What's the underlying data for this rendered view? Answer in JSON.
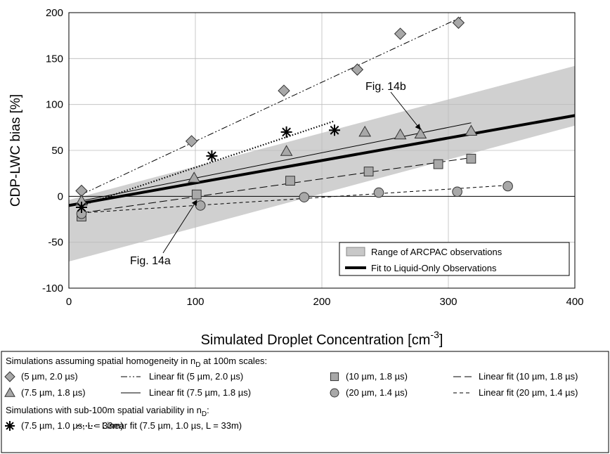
{
  "chart_data": {
    "type": "scatter",
    "xlabel": {
      "text": "Simulated Droplet Concentration [cm",
      "sup": "-3",
      "after": "]"
    },
    "ylabel": "CDP-LWC bias [%]",
    "xlim": [
      0,
      400
    ],
    "xticks": [
      0,
      100,
      200,
      300,
      400
    ],
    "ylim": [
      -100,
      200
    ],
    "yticks": [
      -100,
      -50,
      0,
      50,
      100,
      150,
      200
    ],
    "grid": true,
    "band": {
      "name": "Range of ARCPAC observations",
      "color": "#c8c8c8",
      "x": [
        0,
        400
      ],
      "lower": [
        -71,
        77
      ],
      "upper": [
        -4,
        142
      ]
    },
    "liquid_fit": {
      "name": "Fit to Liquid-Only Observations",
      "color": "#000000",
      "x": [
        0,
        400
      ],
      "values": [
        -10,
        88
      ]
    },
    "annotations": [
      "Fig. 14b",
      "Fig. 14a"
    ],
    "legend_headings": [
      {
        "text": "Simulations assuming spatial homogeneity in n",
        "sub": "D",
        "after": " at 100m scales:"
      },
      {
        "text": "Simulations with sub-100m spatial variability in n",
        "sub": "D",
        "after": ":"
      }
    ],
    "series": [
      {
        "name": "(5 µm, 2.0 µs)",
        "marker": "diamond",
        "color": "#a8a8a8",
        "x": [
          10,
          97,
          170,
          228,
          262,
          308
        ],
        "y": [
          6,
          60,
          115,
          138,
          177,
          189
        ],
        "fit": {
          "name": "Linear fit (5 µm, 2.0 µs)",
          "dash": "9,3,2,3,2,3",
          "x": [
            10,
            310
          ],
          "y": [
            2,
            195
          ]
        }
      },
      {
        "name": "(7.5 µm, 1.8 µs)",
        "marker": "triangle",
        "color": "#a8a8a8",
        "x": [
          10,
          99,
          172,
          234,
          262,
          278,
          318
        ],
        "y": [
          -5,
          20,
          49,
          70,
          67,
          68,
          71
        ],
        "fit": {
          "name": "Linear fit (7.5 µm, 1.8 µs)",
          "dash": "none",
          "x": [
            10,
            318
          ],
          "y": [
            -5,
            80
          ]
        }
      },
      {
        "name": "(10 µm, 1.8 µs)",
        "marker": "square",
        "color": "#a8a8a8",
        "x": [
          10,
          101,
          175,
          237,
          292,
          318
        ],
        "y": [
          -22,
          2,
          17,
          27,
          35,
          41
        ],
        "fit": {
          "name": "Linear fit (10 µm, 1.8 µs)",
          "dash": "11,5",
          "x": [
            10,
            318
          ],
          "y": [
            -18,
            42
          ]
        }
      },
      {
        "name": "(20 µm, 1.4 µs)",
        "marker": "circle",
        "color": "#a8a8a8",
        "x": [
          10,
          104,
          186,
          245,
          307,
          347
        ],
        "y": [
          -19,
          -10,
          -1,
          4,
          5,
          11
        ],
        "fit": {
          "name": "Linear fit (20 µm, 1.4 µs)",
          "dash": "5,4",
          "x": [
            10,
            347
          ],
          "y": [
            -18,
            12
          ]
        }
      },
      {
        "name": "(7.5 µm, 1.0 µs, L = 33m)",
        "marker": "star",
        "color": "#000000",
        "x": [
          10,
          113,
          172,
          210
        ],
        "y": [
          -12,
          44,
          70,
          72
        ],
        "fit": {
          "name": "Linear fit (7.5 µm, 1.0 µs, L = 33m)",
          "dash": "1.5,2.5",
          "x": [
            10,
            210
          ],
          "y": [
            -10,
            82
          ]
        }
      }
    ]
  }
}
